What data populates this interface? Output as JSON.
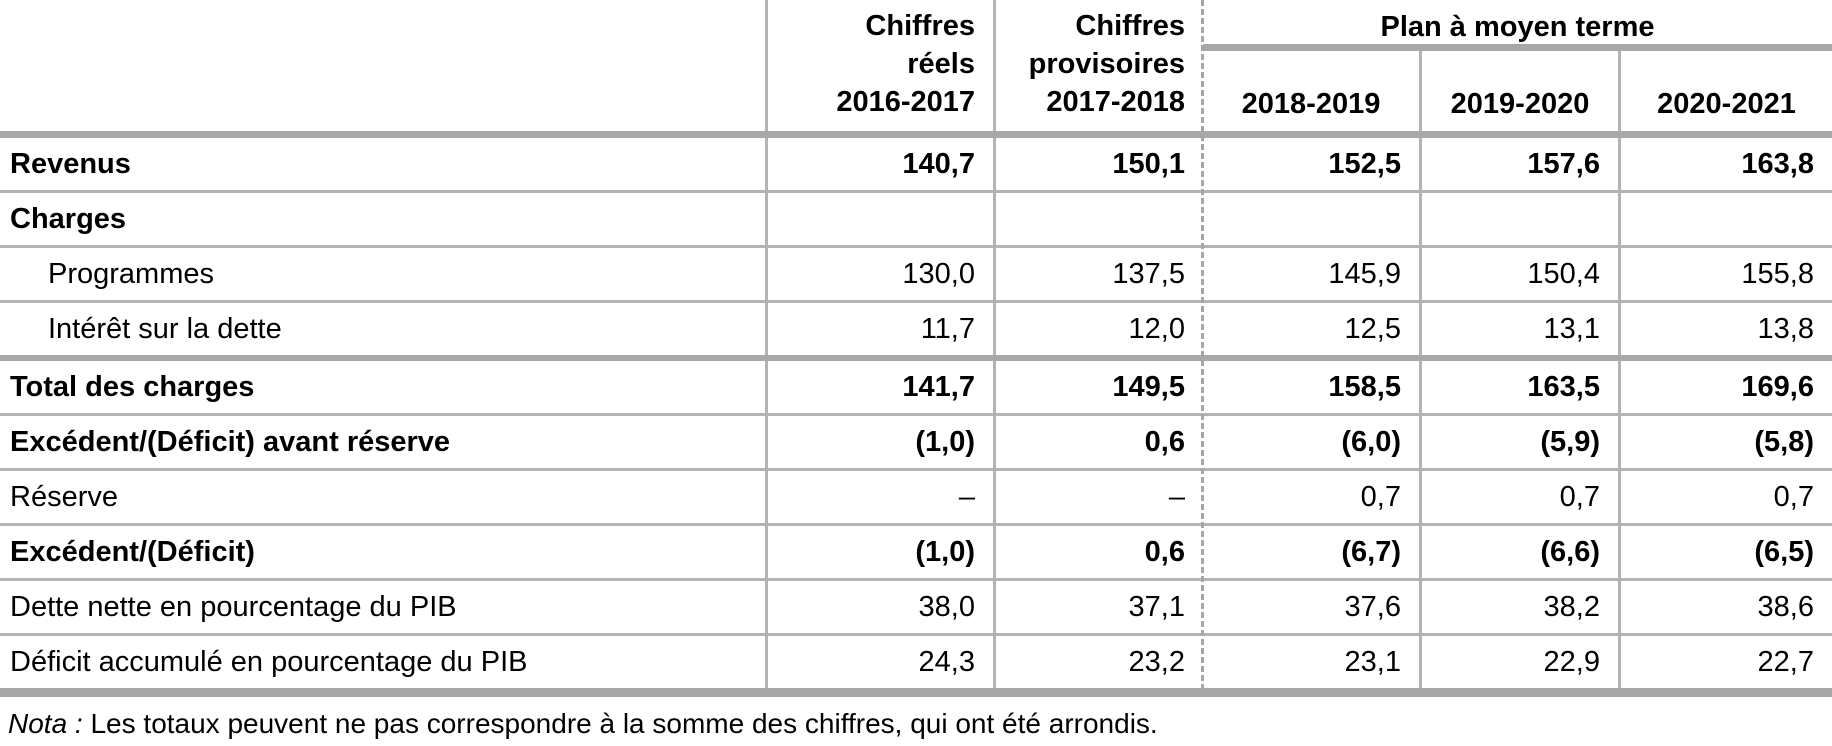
{
  "colors": {
    "background": "#ffffff",
    "text": "#000000",
    "rule_thin": "#b3b3b3",
    "rule_thick": "#a8a8a8"
  },
  "table": {
    "header": {
      "col1": {
        "lines": [
          "Chiffres",
          "réels",
          "2016-2017"
        ]
      },
      "col2": {
        "lines": [
          "Chiffres",
          "provisoires",
          "2017-2018"
        ]
      },
      "plan": {
        "title": "Plan à moyen terme",
        "years": [
          "2018-2019",
          "2019-2020",
          "2020-2021"
        ]
      }
    },
    "rows": [
      {
        "label": "Revenus",
        "values": [
          "140,7",
          "150,1",
          "152,5",
          "157,6",
          "163,8"
        ]
      },
      {
        "label": "Charges",
        "values": [
          "",
          "",
          "",
          "",
          ""
        ]
      },
      {
        "label": "Programmes",
        "values": [
          "130,0",
          "137,5",
          "145,9",
          "150,4",
          "155,8"
        ]
      },
      {
        "label": "Intérêt sur la dette",
        "values": [
          "11,7",
          "12,0",
          "12,5",
          "13,1",
          "13,8"
        ]
      },
      {
        "label": "Total des charges",
        "values": [
          "141,7",
          "149,5",
          "158,5",
          "163,5",
          "169,6"
        ]
      },
      {
        "label": "Excédent/(Déficit) avant réserve",
        "values": [
          "(1,0)",
          "0,6",
          "(6,0)",
          "(5,9)",
          "(5,8)"
        ]
      },
      {
        "label": "Réserve",
        "values": [
          "–",
          "–",
          "0,7",
          "0,7",
          "0,7"
        ]
      },
      {
        "label": "Excédent/(Déficit)",
        "values": [
          "(1,0)",
          "0,6",
          "(6,7)",
          "(6,6)",
          "(6,5)"
        ]
      },
      {
        "label": "Dette nette en pourcentage du PIB",
        "values": [
          "38,0",
          "37,1",
          "37,6",
          "38,2",
          "38,6"
        ]
      },
      {
        "label": "Déficit accumulé en pourcentage du PIB",
        "values": [
          "24,3",
          "23,2",
          "23,1",
          "22,9",
          "22,7"
        ]
      }
    ],
    "note": {
      "prefix": "Nota : ",
      "text": "Les totaux peuvent ne pas correspondre à la somme des chiffres, qui ont été arrondis."
    }
  }
}
